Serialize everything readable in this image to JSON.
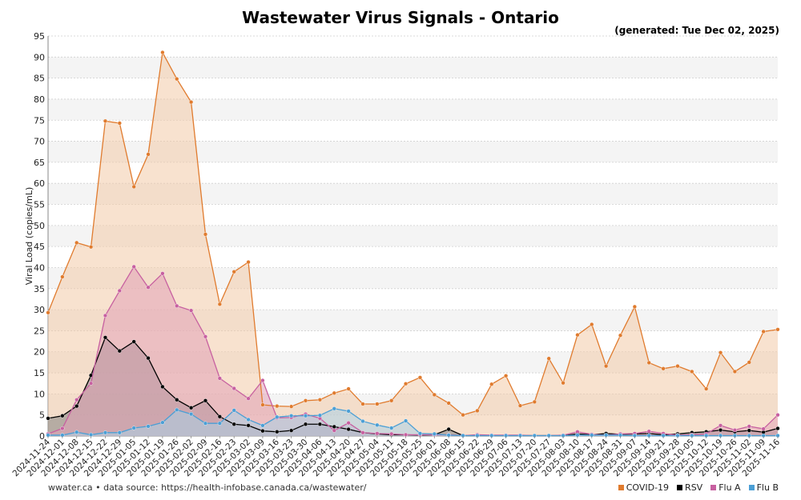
{
  "page": {
    "title": "Wastewater Virus Signals - Ontario",
    "generated": "(generated: Tue Dec 02, 2025)",
    "footer": "wwater.ca • data source: https://health-infobase.canada.ca/wastewater/"
  },
  "chart_data": {
    "type": "area",
    "title": "Wastewater Virus Signals - Ontario",
    "ylabel": "Viral Load (copies/mL)",
    "xlabel": "",
    "ylim": [
      0,
      95
    ],
    "ytick_step": 5,
    "grid": "horizontal",
    "legend_position": "bottom-right",
    "categories": [
      "2024-11-24",
      "2024-12-01",
      "2024-12-08",
      "2024-12-15",
      "2024-12-22",
      "2024-12-29",
      "2025-01-05",
      "2025-01-12",
      "2025-01-19",
      "2025-01-26",
      "2025-02-02",
      "2025-02-09",
      "2025-02-16",
      "2025-02-23",
      "2025-03-02",
      "2025-03-09",
      "2025-03-16",
      "2025-03-23",
      "2025-03-30",
      "2025-04-06",
      "2025-04-13",
      "2025-04-20",
      "2025-04-27",
      "2025-05-04",
      "2025-05-11",
      "2025-05-18",
      "2025-05-25",
      "2025-06-01",
      "2025-06-08",
      "2025-06-15",
      "2025-06-22",
      "2025-06-29",
      "2025-07-06",
      "2025-07-13",
      "2025-07-20",
      "2025-07-27",
      "2025-08-03",
      "2025-08-10",
      "2025-08-17",
      "2025-08-24",
      "2025-08-31",
      "2025-09-07",
      "2025-09-14",
      "2025-09-21",
      "2025-09-28",
      "2025-10-05",
      "2025-10-12",
      "2025-10-19",
      "2025-10-26",
      "2025-11-02",
      "2025-11-09",
      "2025-11-16"
    ],
    "tick_labels": [
      "2024-11-24",
      "2024-12-01",
      "2024-12-08",
      "2024-12-15",
      "2024-12-22",
      "2024-12-29",
      "2025-01-05",
      "2025-01-12",
      "2025-01-19",
      "2025-01-26",
      "2025-02-02",
      "2025-02-09",
      "2025-02-16",
      "2025-02-23",
      "2025-03-02",
      "2025-03-09",
      "2025-03-16",
      "2025-03-23",
      "2025-03-30",
      "2025-04-06",
      "2025-04-13",
      "2025-04-20",
      "2025-04-27",
      "2025-05-04",
      "2025-05-11",
      "2025-05-18",
      "2025-05-25",
      "2025-06-01",
      "2025-06-08",
      "2025-06-15",
      "2025-06-22",
      "2025-06-29",
      "2025-07-06",
      "2025-07-13",
      "2025-07-20",
      "2025-07-27",
      "2025-08-03",
      "2025-08-10",
      "2025-08-17",
      "2025-08-24",
      "2025-08-31",
      "2025-09-07",
      "2025-09-14",
      "2025-09-21",
      "2025-09-28",
      "2025-10-05",
      "2025-10-12",
      "2025-10-19",
      "2025-10-26",
      "2025-11-02",
      "2025-11-09",
      "2025-11-16"
    ],
    "series": [
      {
        "name": "COVID-19",
        "color": "#e07b2e",
        "fill": "#f3cba8",
        "values": [
          29.3,
          37.8,
          45.9,
          44.9,
          74.8,
          74.3,
          59.2,
          66.9,
          91.1,
          84.8,
          79.3,
          47.9,
          31.3,
          39.0,
          41.3,
          7.4,
          7.1,
          7.0,
          8.4,
          8.6,
          10.2,
          11.2,
          7.6,
          7.6,
          8.4,
          12.4,
          13.9,
          9.8,
          7.8,
          5.0,
          6.0,
          12.3,
          14.3,
          7.2,
          8.1,
          18.4,
          12.6,
          24.0,
          26.5,
          16.6,
          23.9,
          30.7,
          17.4,
          16.0,
          16.6,
          15.3,
          11.2,
          19.8,
          15.3,
          17.5,
          24.8,
          25.3
        ]
      },
      {
        "name": "RSV",
        "color": "#000000",
        "fill": "#808080",
        "values": [
          4.2,
          4.8,
          7.1,
          14.4,
          23.4,
          20.2,
          22.4,
          18.5,
          11.7,
          8.6,
          6.7,
          8.4,
          4.6,
          2.8,
          2.5,
          1.2,
          1.0,
          1.3,
          2.8,
          2.8,
          2.2,
          1.6,
          0.8,
          0.5,
          0.3,
          0.3,
          0.2,
          0.3,
          1.6,
          0.1,
          0.1,
          0.1,
          0.1,
          0.1,
          0.1,
          0.1,
          0.1,
          0.5,
          0.3,
          0.6,
          0.4,
          0.5,
          0.6,
          0.3,
          0.5,
          0.8,
          1.0,
          1.4,
          1.0,
          1.3,
          0.9,
          1.8
        ]
      },
      {
        "name": "Flu A",
        "color": "#c760a0",
        "fill": "#e2a3b8",
        "values": [
          0.5,
          1.8,
          8.6,
          12.5,
          28.6,
          34.5,
          40.2,
          35.3,
          38.6,
          30.9,
          29.8,
          23.6,
          13.7,
          11.3,
          8.9,
          13.2,
          4.3,
          4.4,
          5.2,
          4.2,
          1.3,
          3.1,
          0.8,
          0.6,
          0.5,
          0.3,
          0.3,
          0.3,
          0.3,
          0.1,
          0.3,
          0.2,
          0.2,
          0.2,
          0.1,
          0.1,
          0.2,
          1.0,
          0.4,
          0.2,
          0.5,
          0.6,
          1.1,
          0.6,
          0.2,
          0.3,
          0.5,
          2.5,
          1.4,
          2.3,
          1.7,
          5.0
        ]
      },
      {
        "name": "Flu B",
        "color": "#4b9fd5",
        "fill": "#a9cfe6",
        "values": [
          0.2,
          0.2,
          0.9,
          0.3,
          0.8,
          0.8,
          1.9,
          2.3,
          3.2,
          6.2,
          5.2,
          3.0,
          3.0,
          6.1,
          3.9,
          2.5,
          4.5,
          4.8,
          4.8,
          4.9,
          6.5,
          5.9,
          3.5,
          2.6,
          1.9,
          3.6,
          0.6,
          0.5,
          0.2,
          0.1,
          0.1,
          0.1,
          0.1,
          0.1,
          0.1,
          0.1,
          0.1,
          0.2,
          0.2,
          0.2,
          0.2,
          0.1,
          0.1,
          0.1,
          0.1,
          0.1,
          0.1,
          0.1,
          0.1,
          0.1,
          0.1,
          0.1
        ]
      }
    ]
  }
}
